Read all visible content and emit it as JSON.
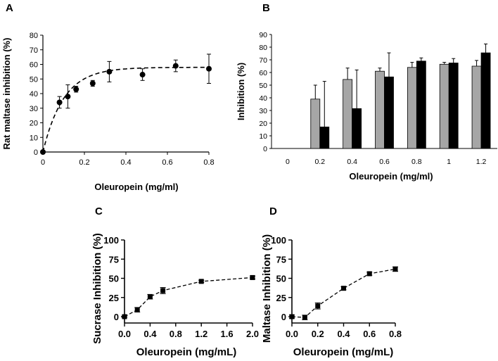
{
  "chart_data": [
    {
      "panel": "A",
      "type": "scatter",
      "title": "",
      "xlabel": "Oleuropein (mg/ml)",
      "ylabel": "Rat maltase inhibition (%)",
      "xlim": [
        0,
        0.8
      ],
      "ylim": [
        0,
        80
      ],
      "xticks": [
        "0",
        "0.2",
        "0.4",
        "0.6",
        "0.8"
      ],
      "yticks": [
        "0",
        "10",
        "20",
        "30",
        "40",
        "50",
        "60",
        "70",
        "80"
      ],
      "xticks_values": [
        0,
        0.2,
        0.4,
        0.6,
        0.8
      ],
      "yticks_values": [
        0,
        10,
        20,
        30,
        40,
        50,
        60,
        70,
        80
      ],
      "points": [
        {
          "x": 0,
          "y": 0,
          "err": 0
        },
        {
          "x": 0.08,
          "y": 34,
          "err": 4
        },
        {
          "x": 0.12,
          "y": 38,
          "err": 8
        },
        {
          "x": 0.16,
          "y": 43,
          "err": 2
        },
        {
          "x": 0.24,
          "y": 47,
          "err": 2
        },
        {
          "x": 0.32,
          "y": 55,
          "err": 7
        },
        {
          "x": 0.48,
          "y": 53,
          "err": 4
        },
        {
          "x": 0.64,
          "y": 59,
          "err": 4
        },
        {
          "x": 0.8,
          "y": 57,
          "err": 10
        }
      ],
      "fit": {
        "ymax": 58,
        "k": 10,
        "style": "dashed"
      }
    },
    {
      "panel": "B",
      "type": "bar",
      "title": "",
      "xlabel": "Oleuropein (mg/ml)",
      "ylabel": "Inhibition (%)",
      "ylim": [
        0,
        90
      ],
      "categories": [
        "0",
        "0.2",
        "0.4",
        "0.6",
        "0.8",
        "1",
        "1.2"
      ],
      "yticks": [
        "0",
        "10",
        "20",
        "30",
        "40",
        "50",
        "60",
        "70",
        "80",
        "90"
      ],
      "yticks_values": [
        0,
        10,
        20,
        30,
        40,
        50,
        60,
        70,
        80,
        90
      ],
      "series": [
        {
          "name": "grey",
          "color": "#a6a6a6",
          "values": [
            0,
            39,
            54.5,
            61,
            64,
            66.5,
            65
          ],
          "errors": [
            0,
            11,
            9,
            2.5,
            4,
            1.5,
            4.5
          ]
        },
        {
          "name": "black",
          "color": "#000000",
          "values": [
            0,
            17,
            31.5,
            56.5,
            69,
            67.5,
            75.5
          ],
          "errors": [
            0,
            36,
            30.5,
            19,
            2.5,
            3.5,
            7
          ]
        }
      ]
    },
    {
      "panel": "C",
      "type": "line",
      "title": "",
      "xlabel": "Oleuropein (mg/mL)",
      "ylabel": "Sucrase Inhibition (%)",
      "xlim": [
        0,
        2.0
      ],
      "ylim": [
        -8,
        100
      ],
      "xticks": [
        "0.0",
        "0.4",
        "0.8",
        "1.2",
        "1.6",
        "2.0"
      ],
      "yticks": [
        "0",
        "25",
        "50",
        "75",
        "100"
      ],
      "xticks_values": [
        0,
        0.4,
        0.8,
        1.2,
        1.6,
        2.0
      ],
      "yticks_values": [
        0,
        25,
        50,
        75,
        100
      ],
      "points": [
        {
          "x": 0,
          "y": 0,
          "err": 1
        },
        {
          "x": 0.2,
          "y": 9,
          "err": 3
        },
        {
          "x": 0.4,
          "y": 26,
          "err": 3
        },
        {
          "x": 0.6,
          "y": 34,
          "err": 4
        },
        {
          "x": 1.2,
          "y": 46,
          "err": 1.5
        },
        {
          "x": 2.0,
          "y": 51,
          "err": 2
        }
      ]
    },
    {
      "panel": "D",
      "type": "line",
      "title": "",
      "xlabel": "Oleuropein (mg/mL)",
      "ylabel": "Maltase Inhibition (%)",
      "xlim": [
        0,
        0.8
      ],
      "ylim": [
        -8,
        100
      ],
      "xticks": [
        "0.0",
        "0.2",
        "0.4",
        "0.6",
        "0.8"
      ],
      "yticks": [
        "0",
        "25",
        "50",
        "75",
        "100"
      ],
      "xticks_values": [
        0,
        0.2,
        0.4,
        0.6,
        0.8
      ],
      "yticks_values": [
        0,
        25,
        50,
        75,
        100
      ],
      "points": [
        {
          "x": 0,
          "y": 0,
          "err": 2
        },
        {
          "x": 0.1,
          "y": -1,
          "err": 3
        },
        {
          "x": 0.2,
          "y": 14,
          "err": 4
        },
        {
          "x": 0.4,
          "y": 37,
          "err": 2
        },
        {
          "x": 0.6,
          "y": 56,
          "err": 2
        },
        {
          "x": 0.8,
          "y": 62,
          "err": 3
        }
      ]
    }
  ]
}
